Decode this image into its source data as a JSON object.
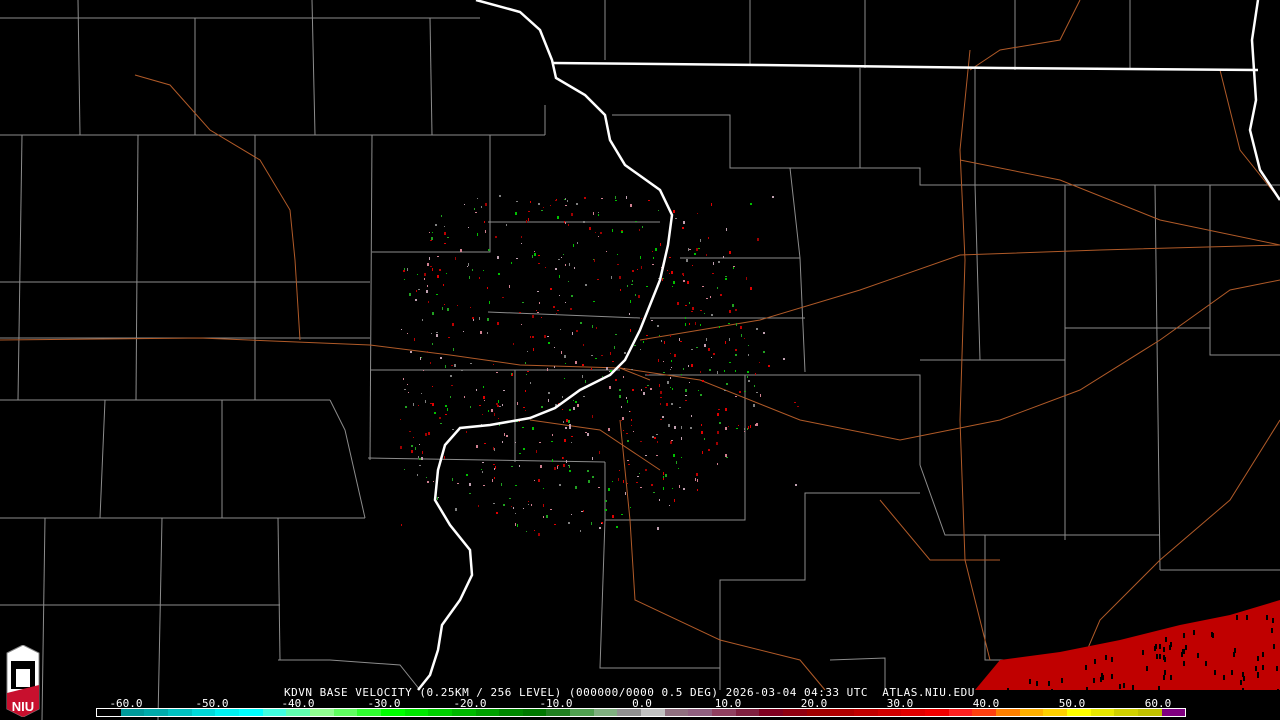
{
  "product_title": "KDVN BASE VELOCITY (0.25KM / 256 LEVEL) (000000/0000 0.5 DEG) 2026-03-04 04:33 UTC  ATLAS.NIU.EDU",
  "logo_text": "NIU",
  "legend": {
    "tick_labels": [
      "-60.0",
      "-50.0",
      "-40.0",
      "-30.0",
      "-20.0",
      "-10.0",
      "0.0",
      "10.0",
      "20.0",
      "30.0",
      "40.0",
      "50.0",
      "60.0"
    ],
    "colors": [
      "#000000",
      "#009a9a",
      "#00aaaa",
      "#00c0c0",
      "#00d8d8",
      "#00f0f0",
      "#00ffff",
      "#40ffe0",
      "#60ffb0",
      "#90ff90",
      "#60ff60",
      "#30ff30",
      "#00ff00",
      "#00e800",
      "#00d000",
      "#00b800",
      "#00a000",
      "#008800",
      "#007800",
      "#208020",
      "#50a050",
      "#80b080",
      "#909090",
      "#c0c0c0",
      "#907080",
      "#906080",
      "#904060",
      "#802040",
      "#800020",
      "#900010",
      "#a00000",
      "#b00000",
      "#c00000",
      "#d00000",
      "#e00000",
      "#f00000",
      "#ff2020",
      "#ff4010",
      "#ff8000",
      "#ffb000",
      "#ffd000",
      "#ffff00",
      "#e8e800",
      "#d0d000",
      "#c0c000",
      "#800080"
    ],
    "accent_outline": "#ffffff"
  },
  "colors": {
    "background": "#000000",
    "county_lines": "#8c8c8c",
    "state_lines": "#ffffff",
    "roads": "#b05a28",
    "precip": "#c00000"
  }
}
